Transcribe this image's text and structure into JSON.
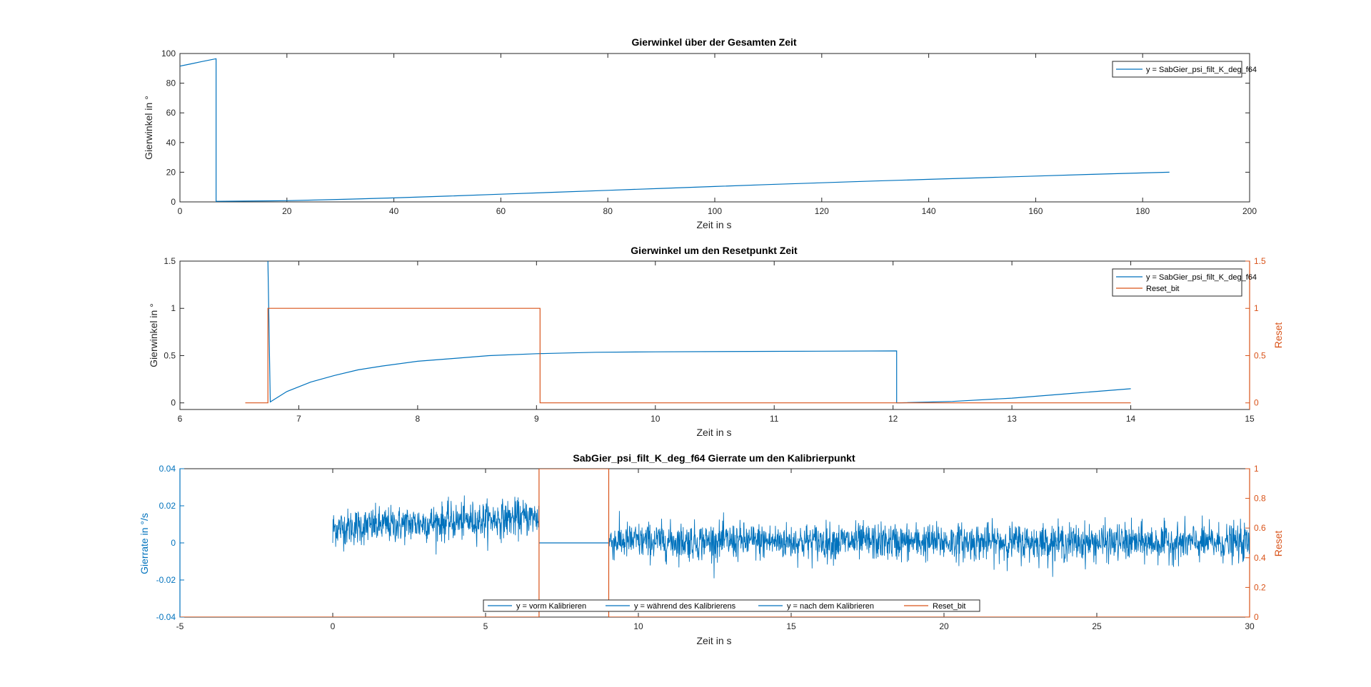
{
  "colors": {
    "blue": "#0072BD",
    "orange": "#D95319",
    "axis": "#262626",
    "noise_blue": "#0072BD"
  },
  "chart_data": [
    {
      "type": "line",
      "title": "Gierwinkel über der Gesamten Zeit",
      "xlabel": "Zeit in s",
      "ylabel": "Gierwinkel in °",
      "xlim": [
        0,
        200
      ],
      "ylim": [
        0,
        100
      ],
      "xticks": [
        0,
        20,
        40,
        60,
        80,
        100,
        120,
        140,
        160,
        180,
        200
      ],
      "yticks": [
        0,
        20,
        40,
        60,
        80,
        100
      ],
      "legend_position": "top-right",
      "series": [
        {
          "name": "y = SabGier_psi_filt_K_deg_f64",
          "color": "blue",
          "x": [
            0,
            2,
            4,
            6.75,
            6.75,
            6.8,
            10,
            20,
            30,
            40,
            50,
            60,
            70,
            80,
            90,
            100,
            110,
            120,
            130,
            140,
            150,
            160,
            170,
            180,
            185
          ],
          "y": [
            91.5,
            93,
            94.5,
            96.5,
            0,
            0.4,
            0.5,
            0.8,
            1.7,
            2.7,
            3.9,
            5.2,
            6.5,
            7.8,
            9.1,
            10.4,
            11.7,
            12.9,
            14.1,
            15.2,
            16.3,
            17.4,
            18.5,
            19.5,
            20
          ]
        }
      ]
    },
    {
      "type": "line",
      "title": "Gierwinkel um den Resetpunkt Zeit",
      "xlabel": "Zeit in s",
      "ylabel": "Gierwinkel in °",
      "y2label": "Reset",
      "xlim": [
        6,
        15
      ],
      "ylim": [
        -0.07,
        1.5
      ],
      "y2lim": [
        -0.07,
        1.5
      ],
      "xticks": [
        6,
        7,
        8,
        9,
        10,
        11,
        12,
        13,
        14,
        15
      ],
      "yticks": [
        0,
        0.5,
        1,
        1.5
      ],
      "y2ticks": [
        0,
        0.5,
        1,
        1.5
      ],
      "legend_position": "top-right",
      "series": [
        {
          "name": "y = SabGier_psi_filt_K_deg_f64",
          "color": "blue",
          "x": [
            6.74,
            6.74,
            6.76,
            6.9,
            7.1,
            7.3,
            7.5,
            7.7,
            8.0,
            8.3,
            8.6,
            9.0,
            9.5,
            10.0,
            11.0,
            12.03,
            12.03,
            12.05,
            12.5,
            13.0,
            13.5,
            14.0
          ],
          "y": [
            1.5,
            1.5,
            0.01,
            0.12,
            0.22,
            0.29,
            0.35,
            0.39,
            0.44,
            0.47,
            0.5,
            0.52,
            0.535,
            0.54,
            0.545,
            0.55,
            0.0,
            0.0,
            0.015,
            0.05,
            0.1,
            0.15
          ]
        },
        {
          "name": "Reset_bit",
          "color": "orange",
          "x": [
            6.55,
            6.74,
            6.74,
            9.03,
            9.03,
            14.0
          ],
          "y": [
            0,
            0,
            1,
            1,
            0,
            0
          ]
        }
      ]
    },
    {
      "type": "line",
      "title": "SabGier_psi_filt_K_deg_f64 Gierrate um den Kalibrierpunkt",
      "xlabel": "Zeit in s",
      "ylabel": "Gierrate in °/s",
      "y2label": "Reset",
      "xlim": [
        -5,
        30
      ],
      "ylim": [
        -0.04,
        0.04
      ],
      "y2lim": [
        0,
        1
      ],
      "xticks": [
        -5,
        0,
        5,
        10,
        15,
        20,
        25,
        30
      ],
      "yticks": [
        -0.04,
        -0.02,
        0,
        0.02,
        0.04
      ],
      "y2ticks": [
        0,
        0.2,
        0.4,
        0.6,
        0.8,
        1
      ],
      "legend_position": "bottom-center",
      "series": [
        {
          "name": "y = vorm Kalibrieren",
          "color": "blue",
          "x_range": [
            0,
            6.75
          ],
          "mean_trend": [
            0.008,
            0.014
          ],
          "noise_amplitude": 0.009,
          "points": 700
        },
        {
          "name": "y = während des Kalibrierens",
          "color": "blue",
          "x": [
            6.75,
            9.03
          ],
          "y": [
            0,
            0
          ]
        },
        {
          "name": "y = nach dem Kalibrieren",
          "color": "blue",
          "x_range": [
            9.03,
            30
          ],
          "mean_trend": [
            0.001,
            0.0
          ],
          "noise_amplitude": 0.009,
          "points": 2100
        },
        {
          "name": "Reset_bit",
          "color": "orange",
          "axis": "right",
          "x": [
            -5,
            6.75,
            6.75,
            9.03,
            9.03,
            30
          ],
          "y": [
            0,
            0,
            1,
            1,
            0,
            0
          ]
        }
      ]
    }
  ]
}
